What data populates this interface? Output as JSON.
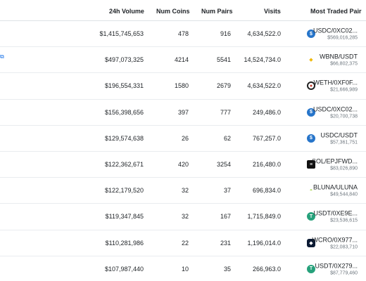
{
  "header": {
    "volume": "24h Volume",
    "coins": "Num Coins",
    "pairs": "Num Pairs",
    "visits": "Visits",
    "most_traded": "Most Traded Pair"
  },
  "colors": {
    "usdc": "#2775ca",
    "binance": "#f0b90b",
    "tether": "#26a17b",
    "link": "#1a73e8"
  },
  "rows": [
    {
      "volume": "$1,415,745,653",
      "coins": "478",
      "pairs": "916",
      "visits": "4,634,522.0",
      "pair": "USDC/0XC02...",
      "pair_volume": "$569,016,285",
      "icon": "usdc-icon"
    },
    {
      "volume": "$497,073,325",
      "coins": "4214",
      "pairs": "5541",
      "visits": "14,524,734.0",
      "pair": "WBNB/USDT",
      "pair_volume": "$66,802,375",
      "icon": "bnb-icon"
    },
    {
      "volume": "$196,554,331",
      "coins": "1580",
      "pairs": "2679",
      "visits": "4,634,522.0",
      "pair": "WETH/0XF0F...",
      "pair_volume": "$21,666,989",
      "icon": "weth-icon"
    },
    {
      "volume": "$156,398,656",
      "coins": "397",
      "pairs": "777",
      "visits": "249,486.0",
      "pair": "USDC/0XC02...",
      "pair_volume": "$20,700,738",
      "icon": "usdc-icon"
    },
    {
      "volume": "$129,574,638",
      "coins": "26",
      "pairs": "62",
      "visits": "767,257.0",
      "pair": "USDC/USDT",
      "pair_volume": "$57,361,751",
      "icon": "usdc-icon"
    },
    {
      "volume": "$122,362,671",
      "coins": "420",
      "pairs": "3254",
      "visits": "216,480.0",
      "pair": "SOL/EPJFWD...",
      "pair_volume": "$83,026,890",
      "icon": "sol-icon"
    },
    {
      "volume": "$122,179,520",
      "coins": "32",
      "pairs": "37",
      "visits": "696,834.0",
      "pair": "BLUNA/ULUNA",
      "pair_volume": "$49,544,840",
      "icon": "bluna-icon"
    },
    {
      "volume": "$119,347,845",
      "coins": "32",
      "pairs": "167",
      "visits": "1,715,849.0",
      "pair": "USDT/0XE9E...",
      "pair_volume": "$23,536,615",
      "icon": "tether-icon"
    },
    {
      "volume": "$110,281,986",
      "coins": "22",
      "pairs": "231",
      "visits": "1,196,014.0",
      "pair": "WCRO/0X977...",
      "pair_volume": "$22,083,710",
      "icon": "cro-icon"
    },
    {
      "volume": "$107,987,440",
      "coins": "10",
      "pairs": "35",
      "visits": "266,963.0",
      "pair": "USDT/0X279...",
      "pair_volume": "$87,779,460",
      "icon": "tether-icon"
    }
  ]
}
